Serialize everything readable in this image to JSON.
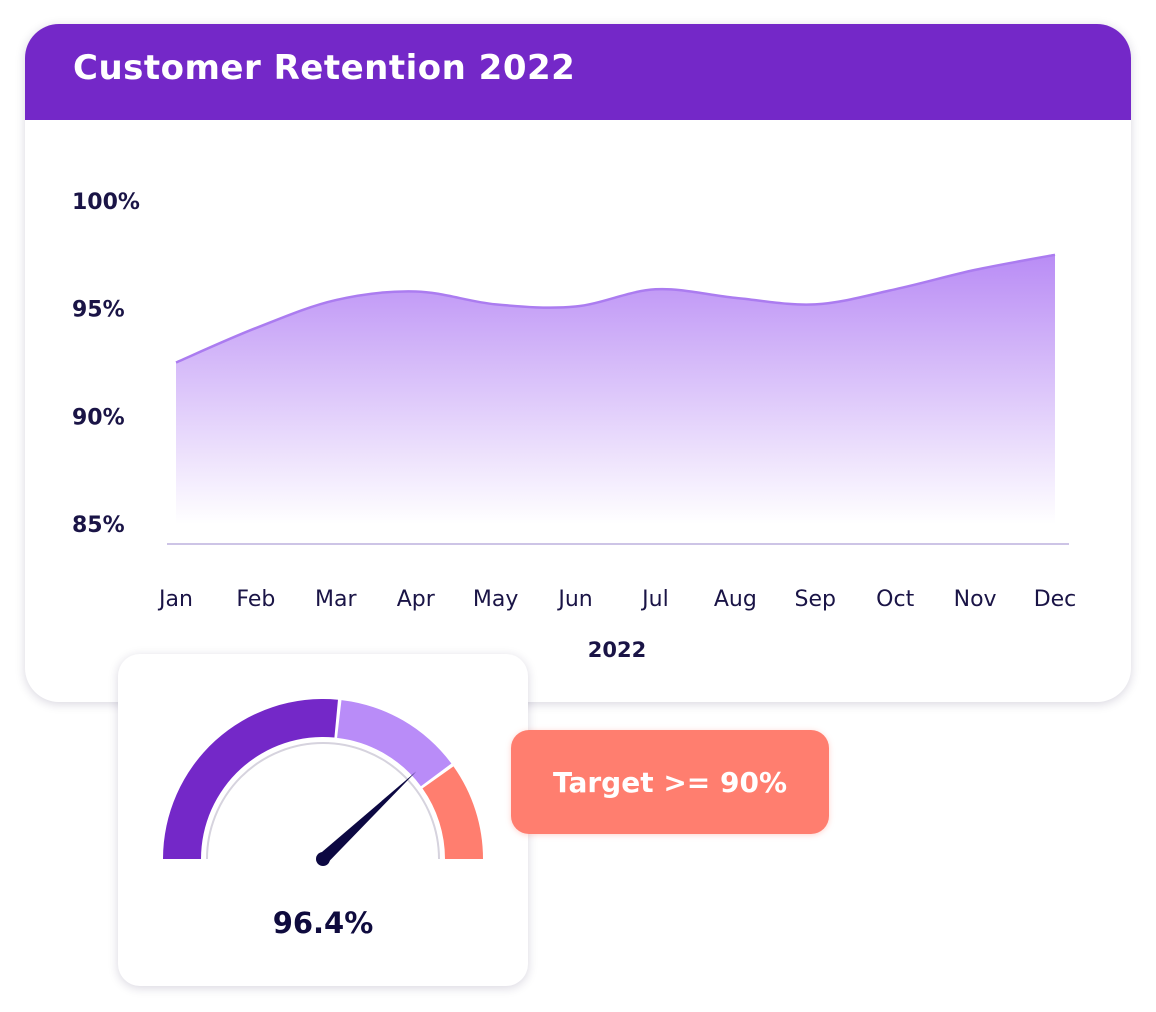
{
  "card": {
    "title": "Customer Retention 2022"
  },
  "chart_data": {
    "type": "area",
    "title": "Customer Retention 2022",
    "xlabel": "2022",
    "ylabel": "",
    "categories": [
      "Jan",
      "Feb",
      "Mar",
      "Apr",
      "May",
      "Jun",
      "Jul",
      "Aug",
      "Sep",
      "Oct",
      "Nov",
      "Dec"
    ],
    "values": [
      92.5,
      94.1,
      95.4,
      95.8,
      95.2,
      95.1,
      95.9,
      95.5,
      95.2,
      95.9,
      96.8,
      97.5
    ],
    "y_ticks": [
      "100%",
      "95%",
      "90%",
      "85%"
    ],
    "y_tick_values": [
      100,
      95,
      90,
      85
    ],
    "ylim": [
      85,
      100
    ],
    "grid": false,
    "legend": "none",
    "colors": {
      "line": "#ab7cf0",
      "fill_top": "#b98cf5",
      "fill_bottom": "#ffffff",
      "baseline": "#cdc4e6"
    }
  },
  "gauge": {
    "value": 96.4,
    "value_label": "96.4%",
    "min": 85,
    "max": 100,
    "segments": [
      {
        "name": "low",
        "from": 85,
        "to": 93,
        "color": "#7428c8"
      },
      {
        "name": "mid",
        "from": 93,
        "to": 97,
        "color": "#b98cf8"
      },
      {
        "name": "high",
        "from": 97,
        "to": 100,
        "color": "#ff7e6f"
      }
    ],
    "needle_color": "#0c0842"
  },
  "target": {
    "label": "Target >= 90%",
    "color": "#ff7e6f"
  },
  "colors": {
    "header": "#7428c8",
    "text": "#0f0b3e"
  }
}
